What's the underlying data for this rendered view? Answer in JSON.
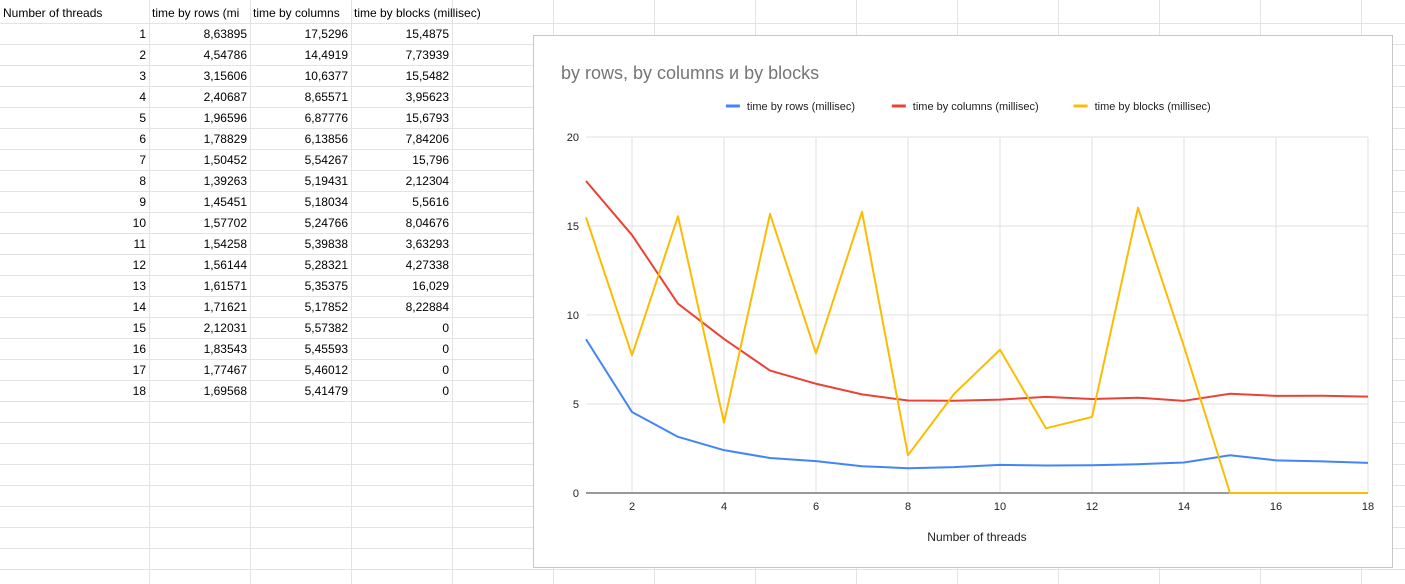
{
  "sheet": {
    "headers": [
      "Number of threads",
      "time by rows (mi",
      "time by columns",
      "time by blocks (millisec)"
    ],
    "rows": [
      [
        "1",
        "8,63895",
        "17,5296",
        "15,4875"
      ],
      [
        "2",
        "4,54786",
        "14,4919",
        "7,73939"
      ],
      [
        "3",
        "3,15606",
        "10,6377",
        "15,5482"
      ],
      [
        "4",
        "2,40687",
        "8,65571",
        "3,95623"
      ],
      [
        "5",
        "1,96596",
        "6,87776",
        "15,6793"
      ],
      [
        "6",
        "1,78829",
        "6,13856",
        "7,84206"
      ],
      [
        "7",
        "1,50452",
        "5,54267",
        "15,796"
      ],
      [
        "8",
        "1,39263",
        "5,19431",
        "2,12304"
      ],
      [
        "9",
        "1,45451",
        "5,18034",
        "5,5616"
      ],
      [
        "10",
        "1,57702",
        "5,24766",
        "8,04676"
      ],
      [
        "11",
        "1,54258",
        "5,39838",
        "3,63293"
      ],
      [
        "12",
        "1,56144",
        "5,28321",
        "4,27338"
      ],
      [
        "13",
        "1,61571",
        "5,35375",
        "16,029"
      ],
      [
        "14",
        "1,71621",
        "5,17852",
        "8,22884"
      ],
      [
        "15",
        "2,12031",
        "5,57382",
        "0"
      ],
      [
        "16",
        "1,83543",
        "5,45593",
        "0"
      ],
      [
        "17",
        "1,77467",
        "5,46012",
        "0"
      ],
      [
        "18",
        "1,69568",
        "5,41479",
        "0"
      ]
    ]
  },
  "chart_data": {
    "type": "line",
    "title": "by rows, by columns и by blocks",
    "xlabel": "Number of threads",
    "ylabel": "",
    "x": [
      1,
      2,
      3,
      4,
      5,
      6,
      7,
      8,
      9,
      10,
      11,
      12,
      13,
      14,
      15,
      16,
      17,
      18
    ],
    "xticks": [
      2,
      4,
      6,
      8,
      10,
      12,
      14,
      16,
      18
    ],
    "yticks": [
      0,
      5,
      10,
      15,
      20
    ],
    "xlim": [
      1,
      18
    ],
    "ylim": [
      0,
      20
    ],
    "grid": true,
    "legend_position": "top",
    "series": [
      {
        "name": "time by rows (millisec)",
        "color": "#4285f4",
        "values": [
          8.63895,
          4.54786,
          3.15606,
          2.40687,
          1.96596,
          1.78829,
          1.50452,
          1.39263,
          1.45451,
          1.57702,
          1.54258,
          1.56144,
          1.61571,
          1.71621,
          2.12031,
          1.83543,
          1.77467,
          1.69568
        ]
      },
      {
        "name": "time by columns (millisec)",
        "color": "#ea4335",
        "values": [
          17.5296,
          14.4919,
          10.6377,
          8.65571,
          6.87776,
          6.13856,
          5.54267,
          5.19431,
          5.18034,
          5.24766,
          5.39838,
          5.28321,
          5.35375,
          5.17852,
          5.57382,
          5.45593,
          5.46012,
          5.41479
        ]
      },
      {
        "name": "time by blocks (millisec)",
        "color": "#fbbc04",
        "values": [
          15.4875,
          7.73939,
          15.5482,
          3.95623,
          15.6793,
          7.84206,
          15.796,
          2.12304,
          5.5616,
          8.04676,
          3.63293,
          4.27338,
          16.029,
          8.22884,
          0,
          0,
          0,
          0
        ]
      }
    ]
  }
}
